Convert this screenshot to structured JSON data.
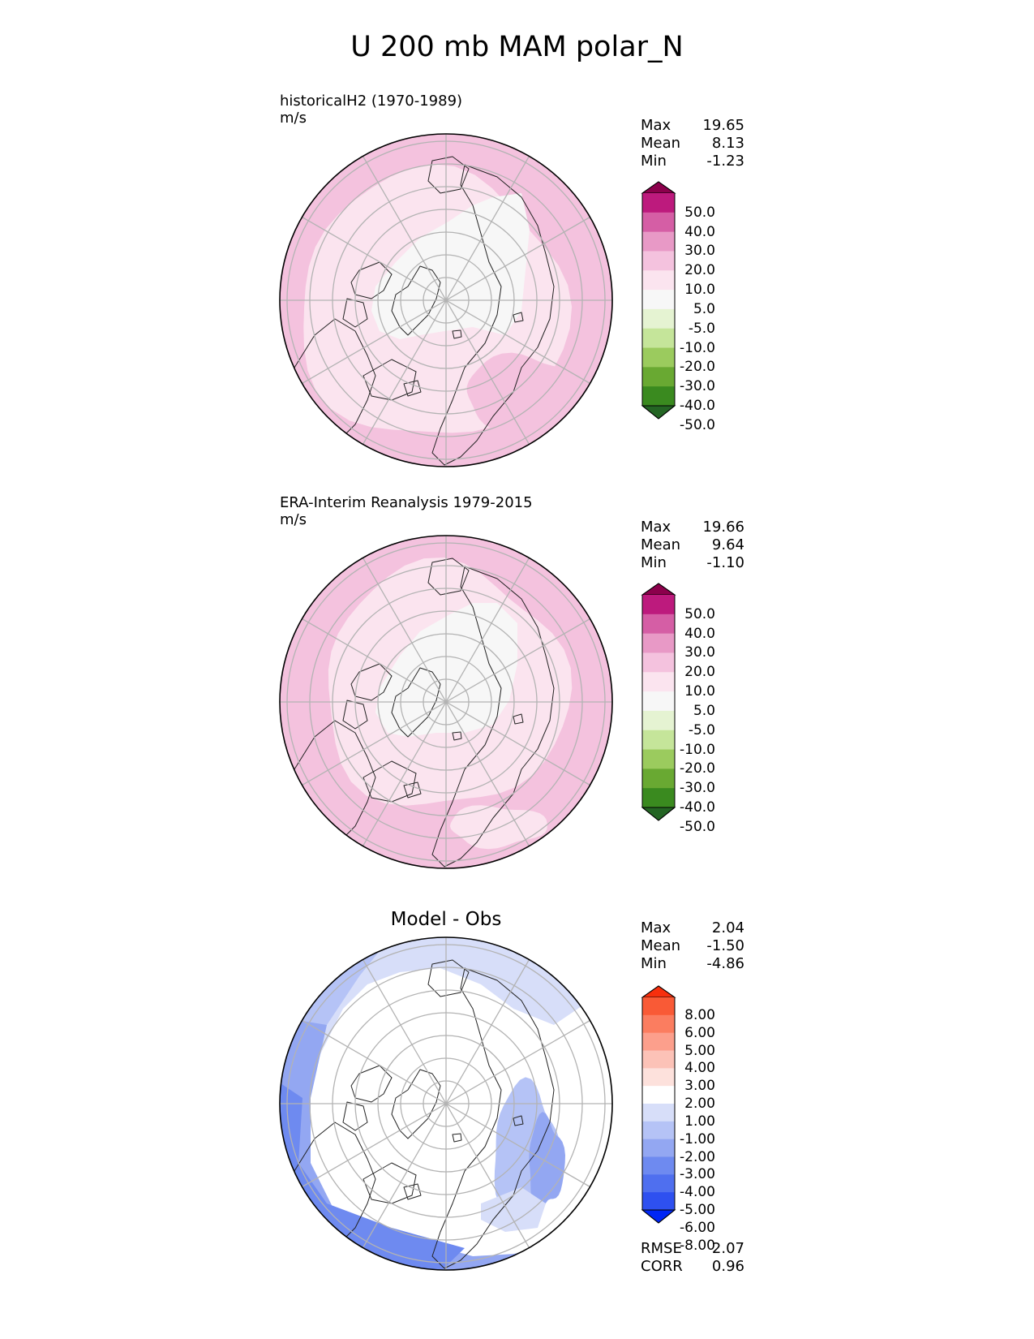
{
  "title": "U 200 mb MAM polar_N",
  "colors": {
    "div_pink_green": [
      "#246524",
      "#3a8a1f",
      "#69a932",
      "#9bcb5e",
      "#c5e59a",
      "#e5f3d2",
      "#f7f7f7",
      "#fbe4ef",
      "#f4c2de",
      "#e899c6",
      "#d55ea5",
      "#bd1a7d",
      "#8c004c"
    ],
    "div_blue_red": [
      "#0026f5",
      "#2e50f0",
      "#4f6fef",
      "#6e8af0",
      "#93a7f2",
      "#b5c3f6",
      "#d7def9",
      "#ffffff",
      "#fde1dc",
      "#fcc2b7",
      "#fc9f8c",
      "#fb7d60",
      "#f95a36",
      "#f72f0d"
    ]
  },
  "chart_data": [
    {
      "type": "heatmap",
      "label": "historicalH2 (1970-1989)",
      "units": "m/s",
      "projection": "north polar stereographic",
      "stats": [
        {
          "name": "Max",
          "value": "19.65"
        },
        {
          "name": "Mean",
          "value": "8.13"
        },
        {
          "name": "Min",
          "value": "-1.23"
        }
      ],
      "colorbar": {
        "ticks": [
          "50.0",
          "40.0",
          "30.0",
          "20.0",
          "10.0",
          "5.0",
          "-5.0",
          "-10.0",
          "-20.0",
          "-30.0",
          "-40.0",
          "-50.0"
        ],
        "extend": "both"
      }
    },
    {
      "type": "heatmap",
      "label": "ERA-Interim Reanalysis 1979-2015",
      "units": "m/s",
      "projection": "north polar stereographic",
      "stats": [
        {
          "name": "Max",
          "value": "19.66"
        },
        {
          "name": "Mean",
          "value": "9.64"
        },
        {
          "name": "Min",
          "value": "-1.10"
        }
      ],
      "colorbar": {
        "ticks": [
          "50.0",
          "40.0",
          "30.0",
          "20.0",
          "10.0",
          "5.0",
          "-5.0",
          "-10.0",
          "-20.0",
          "-30.0",
          "-40.0",
          "-50.0"
        ],
        "extend": "both"
      }
    },
    {
      "type": "heatmap",
      "label": "Model - Obs",
      "projection": "north polar stereographic",
      "stats": [
        {
          "name": "Max",
          "value": "2.04"
        },
        {
          "name": "Mean",
          "value": "-1.50"
        },
        {
          "name": "Min",
          "value": "-4.86"
        }
      ],
      "colorbar": {
        "ticks": [
          "8.00",
          "6.00",
          "5.00",
          "4.00",
          "3.00",
          "2.00",
          "1.00",
          "-1.00",
          "-2.00",
          "-3.00",
          "-4.00",
          "-5.00",
          "-6.00",
          "-8.00"
        ],
        "extend": "both"
      },
      "metrics": [
        {
          "name": "RMSE",
          "value": "2.07"
        },
        {
          "name": "CORR",
          "value": "0.96"
        }
      ]
    }
  ]
}
